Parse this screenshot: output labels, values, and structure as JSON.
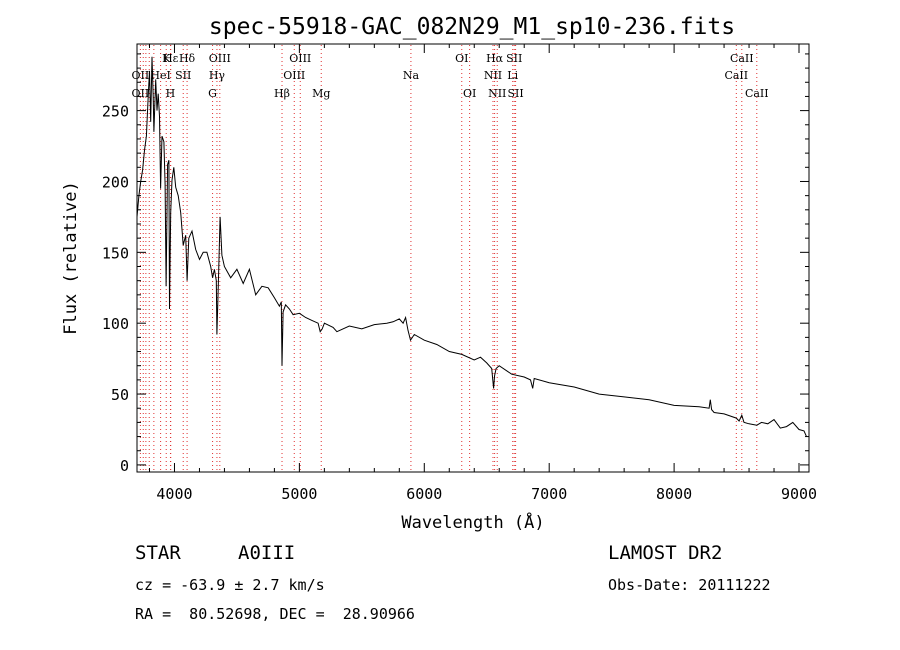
{
  "chart_data": {
    "type": "line",
    "title": "spec-55918-GAC_082N29_M1_sp10-236.fits",
    "xlabel": "Wavelength (Å)",
    "ylabel": "Flux (relative)",
    "xlim": [
      3700,
      9080
    ],
    "ylim": [
      -5,
      297
    ],
    "x_ticks": [
      4000,
      5000,
      6000,
      7000,
      8000,
      9000
    ],
    "y_ticks": [
      0,
      50,
      100,
      150,
      200,
      250
    ],
    "grid": false,
    "legend": "none",
    "series": [
      {
        "x": [
          3700,
          3715,
          3730,
          3745,
          3760,
          3775,
          3790,
          3800,
          3810,
          3820,
          3830,
          3835,
          3850,
          3860,
          3870,
          3880,
          3889,
          3900,
          3915,
          3925,
          3933,
          3945,
          3955,
          3960,
          3970,
          3980,
          3995,
          4010,
          4030,
          4050,
          4070,
          4090,
          4101,
          4115,
          4140,
          4170,
          4200,
          4230,
          4260,
          4290,
          4305,
          4320,
          4335,
          4340,
          4350,
          4365,
          4380,
          4400,
          4450,
          4500,
          4550,
          4600,
          4650,
          4700,
          4750,
          4800,
          4840,
          4855,
          4861,
          4870,
          4890,
          4920,
          4950,
          5000,
          5050,
          5100,
          5150,
          5167,
          5183,
          5200,
          5270,
          5300,
          5400,
          5500,
          5600,
          5700,
          5750,
          5800,
          5830,
          5850,
          5870,
          5890,
          5920,
          6000,
          6100,
          6200,
          6300,
          6400,
          6450,
          6500,
          6540,
          6555,
          6563,
          6575,
          6600,
          6700,
          6800,
          6850,
          6868,
          6880,
          7000,
          7200,
          7400,
          7600,
          7800,
          8000,
          8200,
          8280,
          8290,
          8300,
          8320,
          8400,
          8498,
          8520,
          8542,
          8560,
          8600,
          8662,
          8700,
          8750,
          8800,
          8850,
          8900,
          8950,
          9000,
          9040,
          9060
        ],
        "y": [
          175,
          190,
          200,
          208,
          222,
          232,
          260,
          278,
          242,
          288,
          260,
          235,
          272,
          250,
          262,
          246,
          195,
          232,
          228,
          198,
          126,
          212,
          215,
          110,
          178,
          201,
          210,
          196,
          190,
          178,
          155,
          162,
          130,
          160,
          165,
          152,
          145,
          150,
          150,
          140,
          132,
          138,
          130,
          92,
          124,
          175,
          148,
          140,
          132,
          138,
          128,
          138,
          120,
          126,
          125,
          118,
          112,
          115,
          70,
          108,
          113,
          110,
          106,
          107,
          104,
          102,
          100,
          94,
          96,
          100,
          97,
          94,
          98,
          96,
          99,
          100,
          101,
          103,
          100,
          104,
          95,
          88,
          92,
          88,
          85,
          80,
          78,
          74,
          76,
          72,
          68,
          54,
          63,
          68,
          70,
          64,
          62,
          60,
          54,
          61,
          58,
          55,
          50,
          48,
          46,
          42,
          41,
          40,
          46,
          39,
          37,
          36,
          33,
          31,
          35,
          30,
          29,
          28,
          30,
          29,
          32,
          26,
          27,
          30,
          25,
          24,
          20
        ]
      }
    ],
    "line_labels": [
      {
        "text": "Hε",
        "x": 3970,
        "row": 1
      },
      {
        "text": "K",
        "x": 3934,
        "row": 1
      },
      {
        "text": "Hδ",
        "x": 4101,
        "row": 1
      },
      {
        "text": "OIII",
        "x": 4363,
        "row": 1
      },
      {
        "text": "OIII",
        "x": 5007,
        "row": 1
      },
      {
        "text": "OI",
        "x": 6300,
        "row": 1
      },
      {
        "text": "Hα",
        "x": 6563,
        "row": 1
      },
      {
        "text": "SII",
        "x": 6720,
        "row": 1
      },
      {
        "text": "CaII",
        "x": 8542,
        "row": 1
      },
      {
        "text": "OII",
        "x": 3727,
        "row": 2
      },
      {
        "text": "HeI",
        "x": 3889,
        "row": 2
      },
      {
        "text": "SII",
        "x": 4070,
        "row": 2
      },
      {
        "text": "Hγ",
        "x": 4340,
        "row": 2
      },
      {
        "text": "OIII",
        "x": 4959,
        "row": 2
      },
      {
        "text": "Na",
        "x": 5893,
        "row": 2
      },
      {
        "text": "NII",
        "x": 6550,
        "row": 2
      },
      {
        "text": "Li",
        "x": 6708,
        "row": 2
      },
      {
        "text": "CaII",
        "x": 8498,
        "row": 2
      },
      {
        "text": "OII",
        "x": 3727,
        "row": 3
      },
      {
        "text": "H",
        "x": 3968,
        "row": 3
      },
      {
        "text": "G",
        "x": 4305,
        "row": 3
      },
      {
        "text": "Hβ",
        "x": 4861,
        "row": 3
      },
      {
        "text": "Mg",
        "x": 5175,
        "row": 3
      },
      {
        "text": "OI",
        "x": 6363,
        "row": 3
      },
      {
        "text": "NII",
        "x": 6584,
        "row": 3
      },
      {
        "text": "SII",
        "x": 6731,
        "row": 3
      },
      {
        "text": "CaII",
        "x": 8662,
        "row": 3
      }
    ],
    "line_markers_x": [
      3727,
      3750,
      3771,
      3798,
      3835,
      3889,
      3934,
      3968,
      3970,
      4070,
      4101,
      4305,
      4340,
      4363,
      4861,
      4959,
      5007,
      5175,
      5893,
      6300,
      6363,
      6550,
      6563,
      6584,
      6708,
      6720,
      6731,
      8498,
      8542,
      8662
    ],
    "colors": {
      "spectrum": "#000000",
      "markers": "#e03030",
      "axes": "#000000"
    }
  },
  "info": {
    "object_class": "STAR",
    "subclass": "A0III",
    "survey": "LAMOST DR2",
    "redshift": "cz = -63.9 ± 2.7 km/s",
    "obs_date": "Obs-Date: 20111222",
    "coords": "RA =  80.52698, DEC =  28.90966"
  }
}
